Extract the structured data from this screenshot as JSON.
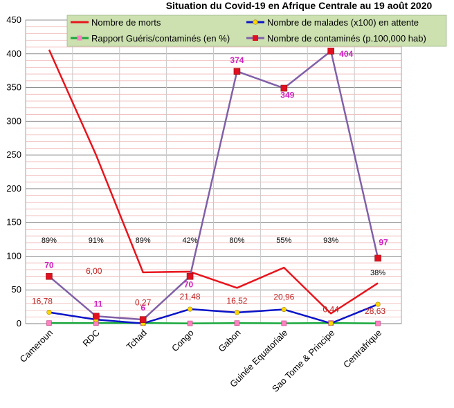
{
  "chart_data": {
    "type": "line",
    "title": "Situation du Covid-19 en Afrique Centrale au 19 août 2020",
    "categories": [
      "Cameroun",
      "RDC",
      "Tchad",
      "Congo",
      "Gabon",
      "Guinée Equatoriale",
      "Sao Tome & Principe",
      "Centrafrique"
    ],
    "ylim": [
      0,
      450
    ],
    "yticks": [
      0,
      50,
      100,
      150,
      200,
      250,
      300,
      350,
      400,
      450
    ],
    "grid": true,
    "legend_position": "top",
    "series": [
      {
        "name": "Nombre de morts",
        "color": "#e8141c",
        "marker": "none",
        "values": [
          406,
          250,
          76,
          77,
          53,
          83,
          15,
          60
        ]
      },
      {
        "name": "Nombre de malades (x100) en attente",
        "color": "#0a14c8",
        "marker": "circle",
        "marker_color": "#ffd700",
        "values": [
          16.78,
          6.0,
          0.27,
          21.48,
          16.52,
          20.96,
          0.44,
          28.63
        ],
        "labels": [
          "16,78",
          "6,00",
          "0,27",
          "21,48",
          "16,52",
          "20,96",
          "0,44",
          "28,63"
        ]
      },
      {
        "name": "Rapport Guéris/contaminés (en %)",
        "color": "#18a83c",
        "marker": "square",
        "marker_color": "#ff80c0",
        "values": [
          0.89,
          0.91,
          0.89,
          0.42,
          0.8,
          0.55,
          0.93,
          0.38
        ],
        "labels": [
          "89%",
          "91%",
          "89%",
          "42%",
          "80%",
          "55%",
          "93%",
          "38%"
        ]
      },
      {
        "name": "Nombre de contaminés (p.100,000 hab)",
        "color": "#8060a8",
        "marker": "square",
        "marker_color": "#e01020",
        "values": [
          70,
          11,
          6,
          70,
          374,
          349,
          404,
          97
        ],
        "labels": [
          "70",
          "11",
          "6",
          "70",
          "374",
          "349",
          "404",
          "97"
        ]
      }
    ]
  }
}
